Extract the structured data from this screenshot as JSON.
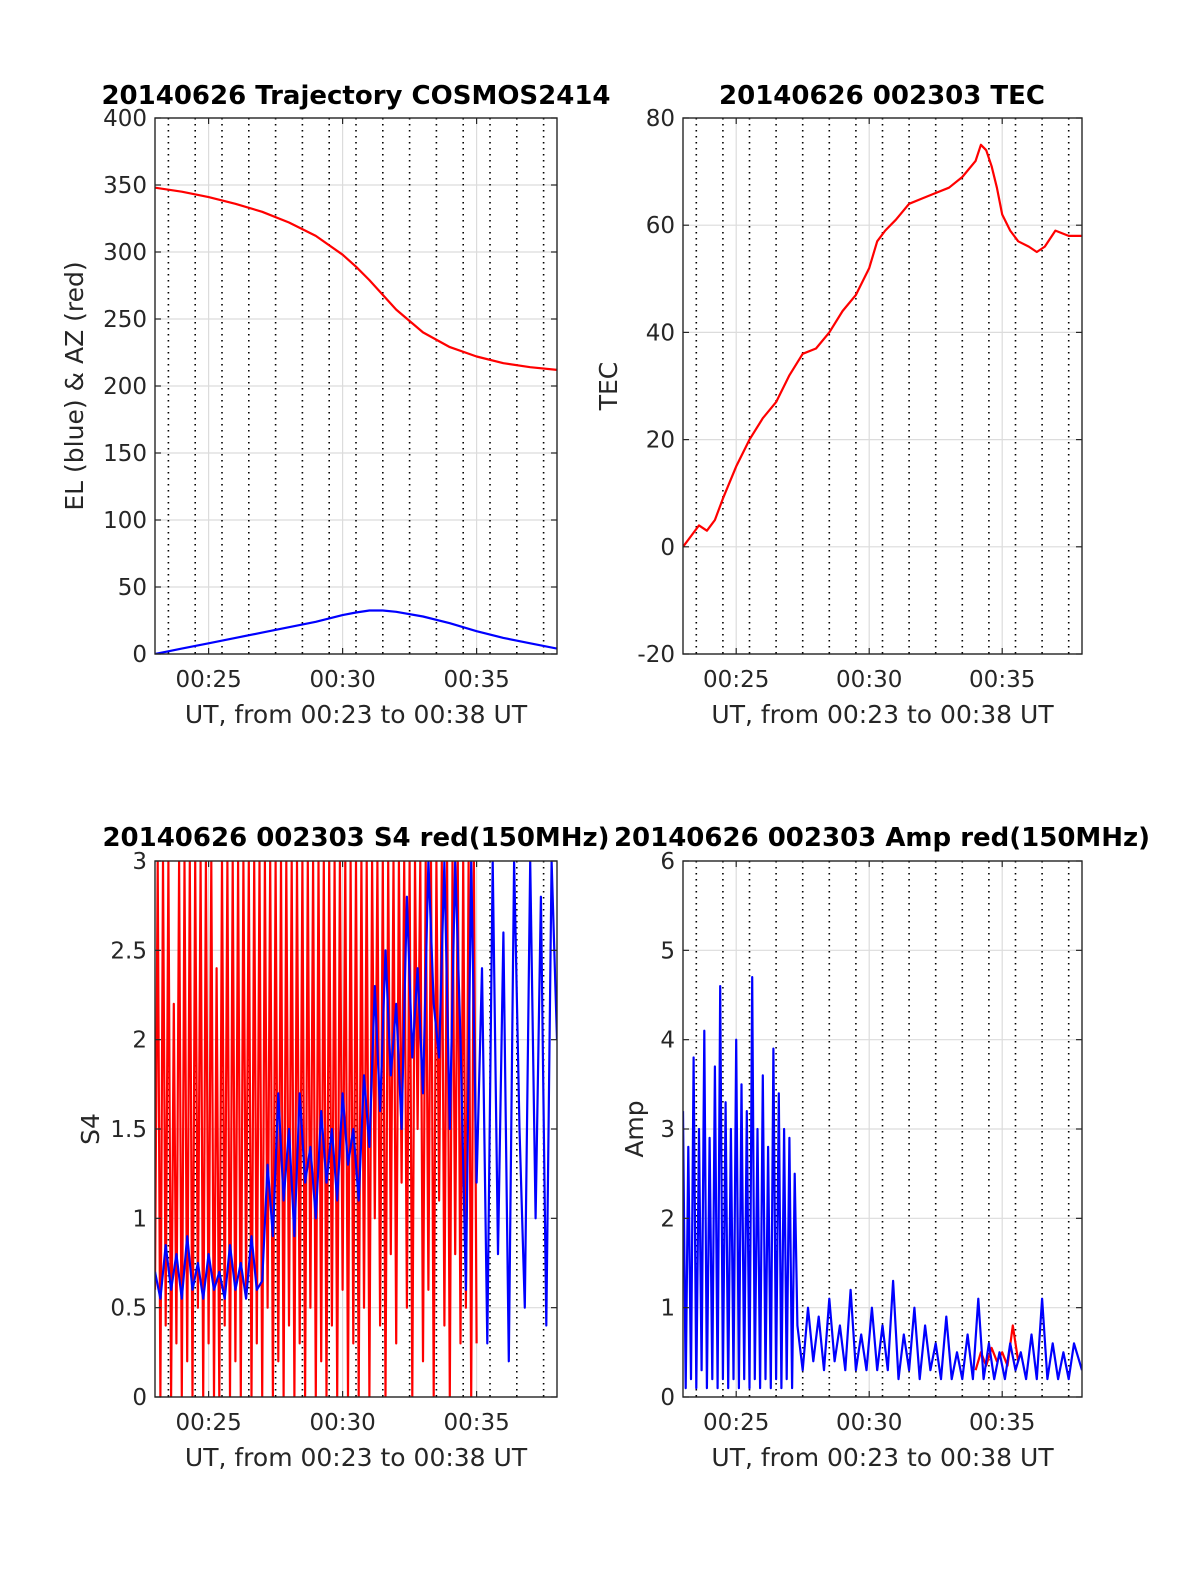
{
  "chart_data": [
    {
      "type": "line",
      "title": "20140626 Trajectory COSMOS2414",
      "xlabel": "UT, from 00:23 to 00:38 UT",
      "ylabel": "EL (blue) & AZ (red)",
      "xlim": [
        23,
        38
      ],
      "ylim": [
        0,
        400
      ],
      "xticks": [
        25,
        30,
        35
      ],
      "xtick_labels": [
        "00:25",
        "00:30",
        "00:35"
      ],
      "yticks": [
        0,
        50,
        100,
        150,
        200,
        250,
        300,
        350,
        400
      ],
      "ytick_labels": [
        "0",
        "50",
        "100",
        "150",
        "200",
        "250",
        "300",
        "350",
        "400"
      ],
      "grid": true,
      "series": [
        {
          "color": "#ff0000",
          "x": [
            23,
            24,
            25,
            26,
            27,
            28,
            29,
            30,
            30.5,
            31,
            31.5,
            32,
            33,
            34,
            35,
            36,
            37,
            38
          ],
          "y": [
            348,
            345,
            341,
            336,
            330,
            322,
            312,
            298,
            289,
            279,
            268,
            257,
            240,
            229,
            222,
            217,
            214,
            212
          ]
        },
        {
          "color": "#0000ff",
          "x": [
            23,
            24,
            25,
            26,
            27,
            28,
            29,
            30,
            30.5,
            31,
            31.5,
            32,
            33,
            34,
            35,
            36,
            37,
            38
          ],
          "y": [
            0,
            4,
            8,
            12,
            16,
            20,
            24,
            29,
            31,
            32.5,
            32.5,
            31.5,
            28,
            23,
            17,
            12,
            8,
            4
          ]
        }
      ]
    },
    {
      "type": "line",
      "title": "20140626 002303 TEC",
      "xlabel": "UT, from 00:23 to 00:38 UT",
      "ylabel": "TEC",
      "xlim": [
        23,
        38
      ],
      "ylim": [
        -20,
        80
      ],
      "xticks": [
        25,
        30,
        35
      ],
      "xtick_labels": [
        "00:25",
        "00:30",
        "00:35"
      ],
      "yticks": [
        -20,
        0,
        20,
        40,
        60,
        80
      ],
      "ytick_labels": [
        "-20",
        "0",
        "20",
        "40",
        "60",
        "80"
      ],
      "grid": true,
      "series": [
        {
          "color": "#ff0000",
          "x": [
            23,
            23.3,
            23.6,
            23.9,
            24.2,
            24.5,
            25,
            25.5,
            26,
            26.5,
            27,
            27.5,
            28,
            28.5,
            29,
            29.5,
            30,
            30.3,
            30.6,
            31,
            31.5,
            32,
            32.5,
            33,
            33.5,
            34,
            34.2,
            34.4,
            34.6,
            34.8,
            35,
            35.3,
            35.6,
            36,
            36.3,
            36.6,
            37,
            37.5,
            38
          ],
          "y": [
            0,
            2,
            4,
            3,
            5,
            9,
            15,
            20,
            24,
            27,
            32,
            36,
            37,
            40,
            44,
            47,
            52,
            57,
            59,
            61,
            64,
            65,
            66,
            67,
            69,
            72,
            75,
            74,
            71,
            67,
            62,
            59,
            57,
            56,
            55,
            56,
            59,
            58,
            58
          ]
        }
      ]
    },
    {
      "type": "line",
      "title": "20140626 002303 S4 red(150MHz)",
      "xlabel": "UT, from 00:23 to 00:38 UT",
      "ylabel": "S4",
      "xlim": [
        23,
        38
      ],
      "ylim": [
        0,
        3
      ],
      "xticks": [
        25,
        30,
        35
      ],
      "xtick_labels": [
        "00:25",
        "00:30",
        "00:35"
      ],
      "yticks": [
        0,
        0.5,
        1,
        1.5,
        2,
        2.5,
        3
      ],
      "ytick_labels": [
        "0",
        "0.5",
        "1",
        "1.5",
        "2",
        "2.5",
        "3"
      ],
      "grid": true,
      "series": [
        {
          "color": "#ff0000",
          "x": [
            23,
            23.1,
            23.2,
            23.3,
            23.4,
            23.5,
            23.6,
            23.7,
            23.8,
            23.9,
            24.0,
            24.1,
            24.2,
            24.3,
            24.4,
            24.5,
            24.6,
            24.7,
            24.8,
            24.9,
            25.0,
            25.1,
            25.2,
            25.3,
            25.4,
            25.5,
            25.6,
            25.7,
            25.8,
            25.9,
            26.0,
            26.1,
            26.2,
            26.3,
            26.4,
            26.5,
            26.6,
            26.7,
            26.8,
            26.9,
            27.0,
            27.1,
            27.2,
            27.3,
            27.4,
            27.5,
            27.6,
            27.7,
            27.8,
            27.9,
            28.0,
            28.1,
            28.2,
            28.3,
            28.4,
            28.5,
            28.6,
            28.7,
            28.8,
            28.9,
            29.0,
            29.1,
            29.2,
            29.3,
            29.4,
            29.5,
            29.6,
            29.7,
            29.8,
            29.9,
            30.0,
            30.1,
            30.2,
            30.3,
            30.4,
            30.5,
            30.6,
            30.7,
            30.8,
            30.9,
            31.0,
            31.1,
            31.2,
            31.3,
            31.4,
            31.5,
            31.6,
            31.7,
            31.8,
            31.9,
            32.0,
            32.1,
            32.2,
            32.3,
            32.4,
            32.5,
            32.6,
            32.7,
            32.8,
            32.9,
            33.0,
            33.1,
            33.2,
            33.3,
            33.4,
            33.5,
            33.6,
            33.7,
            33.8,
            33.9,
            34.0,
            34.1,
            34.2,
            34.3,
            34.4,
            34.5,
            34.6,
            34.7,
            34.8,
            34.9,
            35.0
          ],
          "y": [
            0.6,
            3,
            0,
            3,
            0.4,
            3,
            0,
            2.2,
            0.3,
            3,
            0,
            3,
            0.2,
            3,
            0,
            3,
            0.5,
            3,
            0,
            3,
            0.3,
            3,
            0,
            2.4,
            0,
            3,
            0.4,
            3,
            0,
            3,
            0.2,
            3,
            0,
            3,
            0.6,
            3,
            0,
            3,
            0.3,
            3,
            0,
            3,
            0.5,
            3,
            0,
            3,
            0.2,
            3,
            0,
            3,
            0.4,
            3,
            0,
            3,
            0.3,
            3,
            0,
            3,
            0.5,
            3,
            0,
            3,
            0.2,
            3,
            0,
            3,
            0.4,
            3,
            0,
            3,
            0.6,
            3,
            0,
            3,
            0.3,
            3,
            0,
            3,
            0.5,
            3,
            0,
            3,
            1.0,
            3,
            0.4,
            3,
            0,
            3,
            0.8,
            3,
            0.3,
            3,
            1.2,
            3,
            0.5,
            3,
            0,
            3,
            1.5,
            3,
            0.2,
            3,
            0.6,
            3,
            0,
            3,
            1.1,
            3,
            0.4,
            3,
            0,
            3,
            0.8,
            3,
            0.3,
            3,
            0.5,
            3,
            0,
            3,
            0.3
          ]
        },
        {
          "color": "#0000ff",
          "x": [
            23,
            23.2,
            23.4,
            23.6,
            23.8,
            24.0,
            24.2,
            24.4,
            24.6,
            24.8,
            25.0,
            25.2,
            25.4,
            25.6,
            25.8,
            26.0,
            26.2,
            26.4,
            26.6,
            26.8,
            27.0,
            27.2,
            27.4,
            27.6,
            27.8,
            28.0,
            28.2,
            28.4,
            28.6,
            28.8,
            29.0,
            29.2,
            29.4,
            29.6,
            29.8,
            30.0,
            30.2,
            30.4,
            30.6,
            30.8,
            31.0,
            31.2,
            31.4,
            31.6,
            31.8,
            32.0,
            32.2,
            32.4,
            32.6,
            32.8,
            33.0,
            33.2,
            33.4,
            33.6,
            33.8,
            34.0,
            34.2,
            34.4,
            34.6,
            34.8,
            35.0,
            35.2,
            35.4,
            35.6,
            35.8,
            36.0,
            36.2,
            36.4,
            36.6,
            36.8,
            37.0,
            37.2,
            37.4,
            37.6,
            37.8,
            38.0
          ],
          "y": [
            0.7,
            0.55,
            0.85,
            0.6,
            0.8,
            0.55,
            0.9,
            0.6,
            0.75,
            0.55,
            0.8,
            0.6,
            0.7,
            0.55,
            0.85,
            0.6,
            0.75,
            0.55,
            0.9,
            0.6,
            0.65,
            1.3,
            0.9,
            1.7,
            1.1,
            1.5,
            0.9,
            1.7,
            1.2,
            1.4,
            1.0,
            1.6,
            1.2,
            1.5,
            1.1,
            1.7,
            1.3,
            1.5,
            1.1,
            1.8,
            1.4,
            2.3,
            1.6,
            2.5,
            1.8,
            2.2,
            1.5,
            2.8,
            1.9,
            2.4,
            1.7,
            3.0,
            2.2,
            1.9,
            3.0,
            1.5,
            3.0,
            2.0,
            0.6,
            3.0,
            1.2,
            2.4,
            0.3,
            3.0,
            0.8,
            2.6,
            0.2,
            3.0,
            1.5,
            0.5,
            3.0,
            1.0,
            2.8,
            0.4,
            3.0,
            2.0
          ]
        }
      ]
    },
    {
      "type": "line",
      "title": "20140626 002303 Amp red(150MHz)",
      "xlabel": "UT, from 00:23 to 00:38 UT",
      "ylabel": "Amp",
      "xlim": [
        23,
        38
      ],
      "ylim": [
        0,
        6
      ],
      "xticks": [
        25,
        30,
        35
      ],
      "xtick_labels": [
        "00:25",
        "00:30",
        "00:35"
      ],
      "yticks": [
        0,
        1,
        2,
        3,
        4,
        5,
        6
      ],
      "ytick_labels": [
        "0",
        "1",
        "2",
        "3",
        "4",
        "5",
        "6"
      ],
      "grid": true,
      "series": [
        {
          "color": "#ff0000",
          "x": [
            34.0,
            34.2,
            34.4,
            34.6,
            34.8,
            35.0,
            35.2,
            35.4,
            35.6
          ],
          "y": [
            0.3,
            0.5,
            0.35,
            0.55,
            0.4,
            0.5,
            0.35,
            0.8,
            0.4
          ]
        },
        {
          "color": "#0000ff",
          "x": [
            23.0,
            23.1,
            23.2,
            23.3,
            23.4,
            23.5,
            23.6,
            23.7,
            23.8,
            23.9,
            24.0,
            24.1,
            24.2,
            24.3,
            24.4,
            24.5,
            24.6,
            24.7,
            24.8,
            24.9,
            25.0,
            25.1,
            25.2,
            25.3,
            25.4,
            25.5,
            25.6,
            25.7,
            25.8,
            25.9,
            26.0,
            26.1,
            26.2,
            26.3,
            26.4,
            26.5,
            26.6,
            26.7,
            26.8,
            26.9,
            27.0,
            27.1,
            27.2,
            27.3,
            27.5,
            27.7,
            27.9,
            28.1,
            28.3,
            28.5,
            28.7,
            28.9,
            29.1,
            29.3,
            29.5,
            29.7,
            29.9,
            30.1,
            30.3,
            30.5,
            30.7,
            30.9,
            31.1,
            31.3,
            31.5,
            31.7,
            31.9,
            32.1,
            32.3,
            32.5,
            32.7,
            32.9,
            33.1,
            33.3,
            33.5,
            33.7,
            33.9,
            34.1,
            34.3,
            34.5,
            34.7,
            34.9,
            35.1,
            35.3,
            35.5,
            35.7,
            35.9,
            36.1,
            36.3,
            36.5,
            36.7,
            36.9,
            37.1,
            37.3,
            37.5,
            37.7,
            38.0
          ],
          "y": [
            3.2,
            0.1,
            2.8,
            0.2,
            3.8,
            0.1,
            3.0,
            0.3,
            4.1,
            0.1,
            2.9,
            0.2,
            3.7,
            0.1,
            4.6,
            0.2,
            3.3,
            0.1,
            3.0,
            0.2,
            4.0,
            0.1,
            3.5,
            0.2,
            3.2,
            0.1,
            4.7,
            0.2,
            3.0,
            0.1,
            3.6,
            0.2,
            2.8,
            0.1,
            3.9,
            0.2,
            3.4,
            0.1,
            3.0,
            0.2,
            2.9,
            0.1,
            2.5,
            0.8,
            0.3,
            1.0,
            0.4,
            0.9,
            0.3,
            1.1,
            0.4,
            0.8,
            0.3,
            1.2,
            0.3,
            0.7,
            0.3,
            1.0,
            0.3,
            0.8,
            0.3,
            1.3,
            0.2,
            0.7,
            0.3,
            1.0,
            0.2,
            0.8,
            0.3,
            0.6,
            0.2,
            0.9,
            0.2,
            0.5,
            0.2,
            0.7,
            0.2,
            1.1,
            0.2,
            0.6,
            0.2,
            0.5,
            0.2,
            0.6,
            0.3,
            0.5,
            0.2,
            0.7,
            0.2,
            1.1,
            0.2,
            0.6,
            0.2,
            0.5,
            0.2,
            0.6,
            0.3
          ]
        }
      ]
    }
  ]
}
